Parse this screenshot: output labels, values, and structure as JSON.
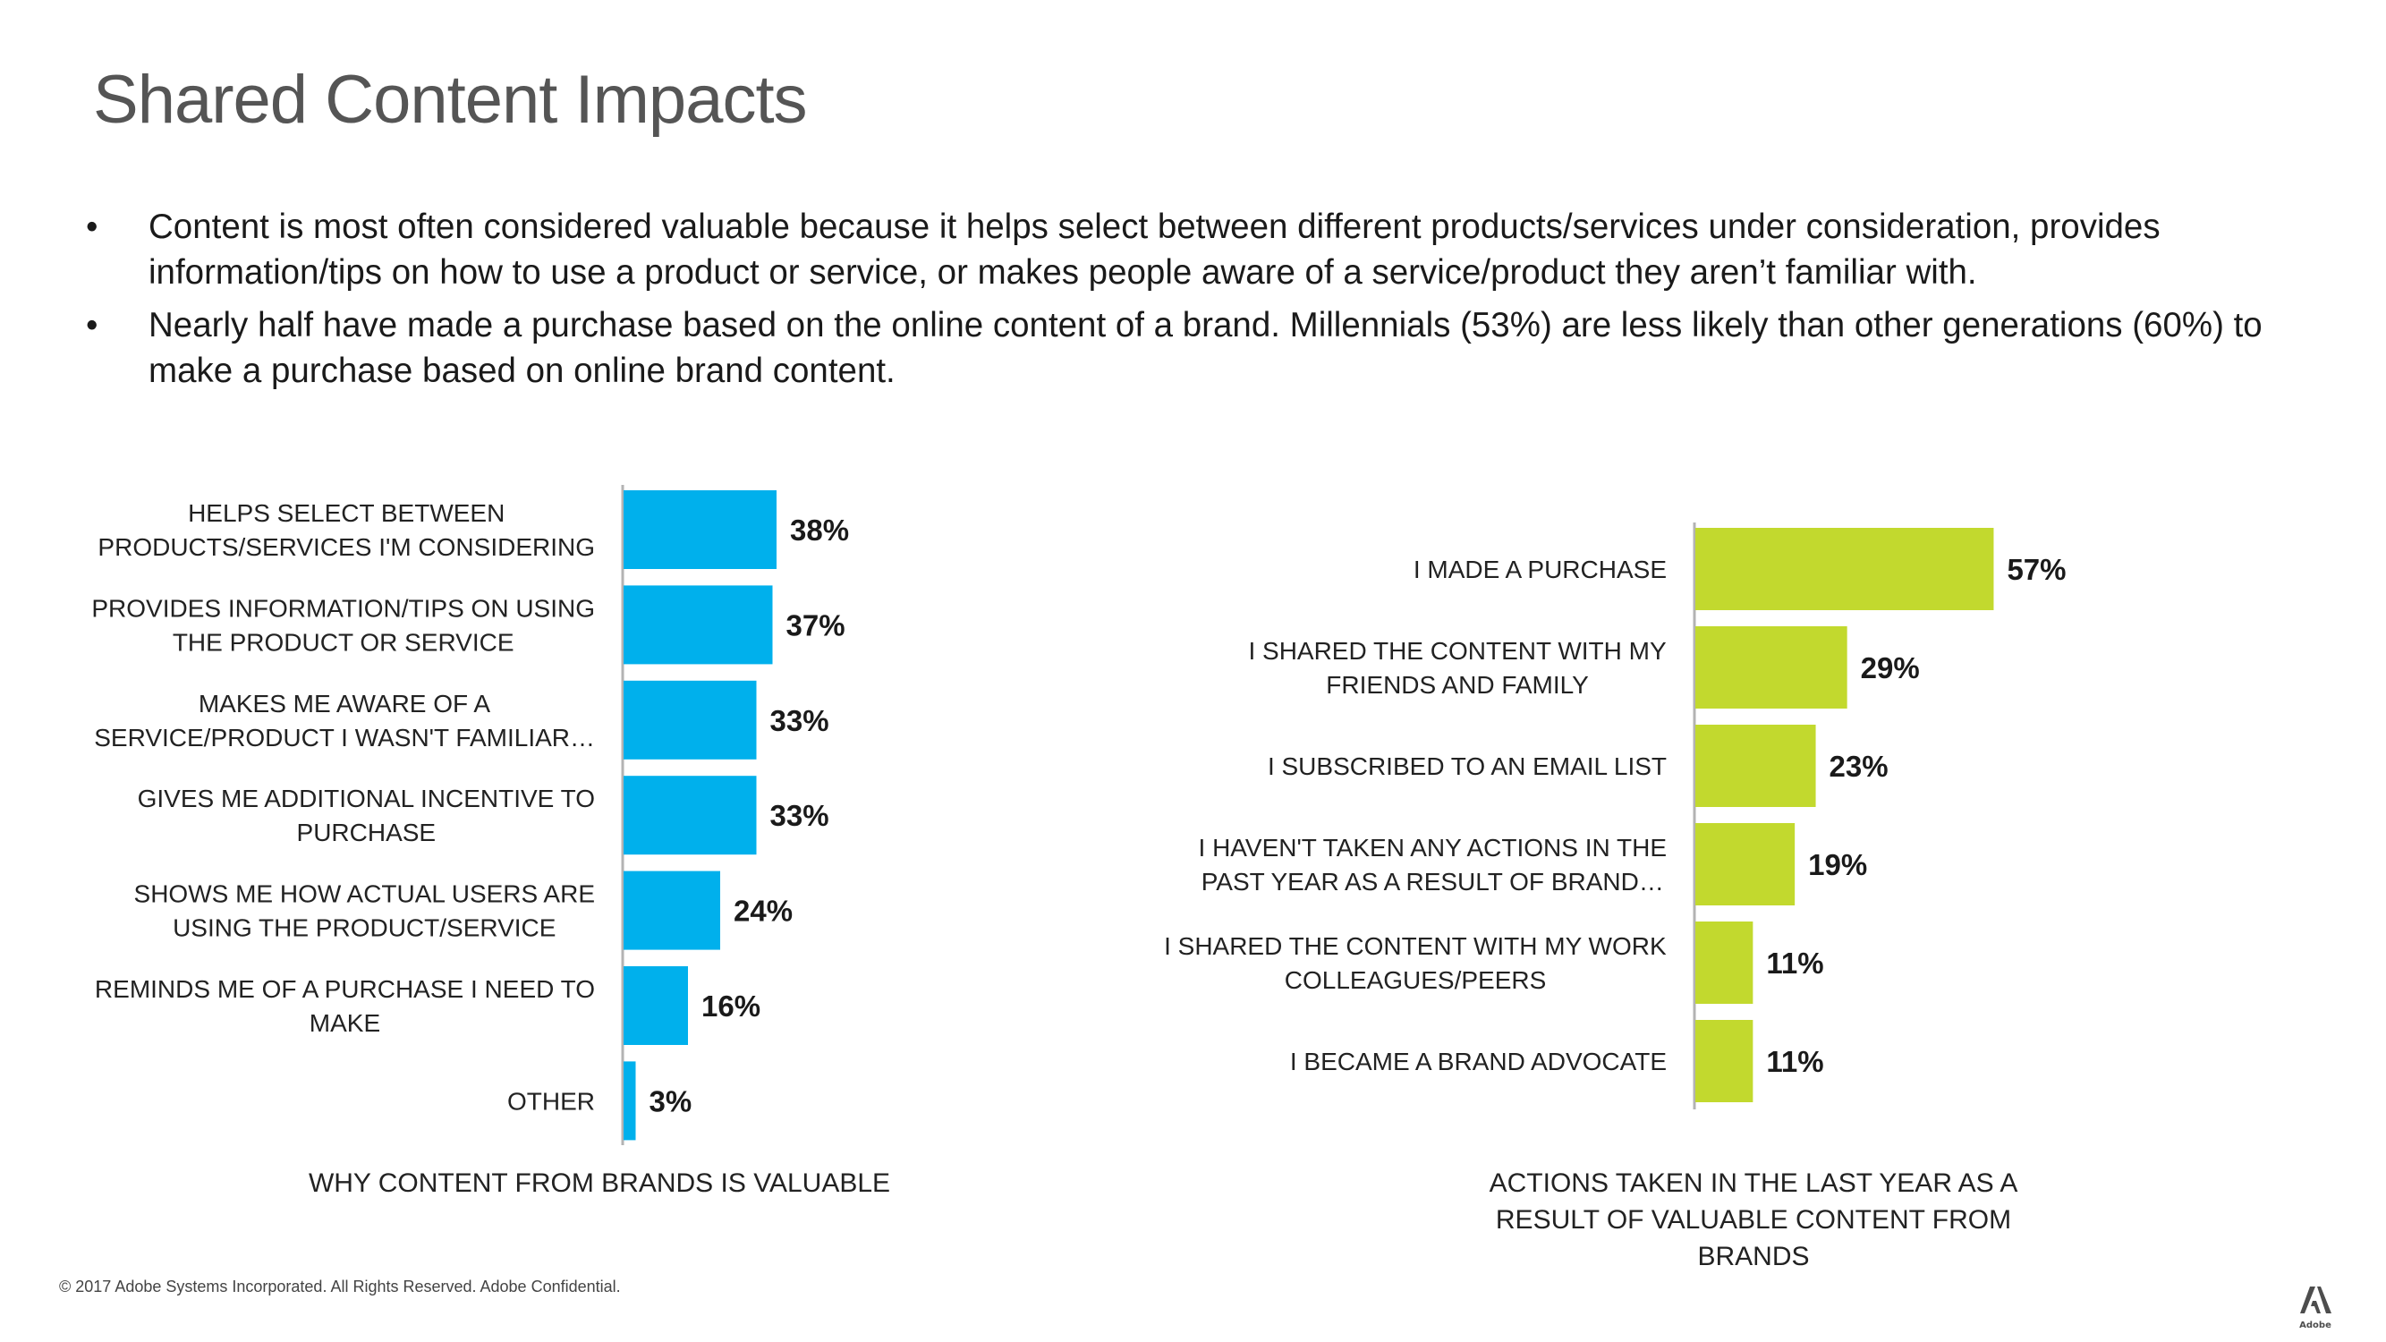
{
  "slide": {
    "title": "Shared Content Impacts",
    "bullet_symbol": "•",
    "bullets": [
      "Content is most often considered valuable because it helps select between different products/services under consideration, provides information/tips on how to use a product or service, or makes people aware of a service/product they aren’t familiar with.",
      "Nearly half have made a purchase based on the online content of a brand. Millennials (53%) are less likely than other generations (60%) to make a purchase based on online brand content."
    ],
    "footer": "© 2017 Adobe Systems Incorporated.  All Rights Reserved.  Adobe Confidential.",
    "logo_text": "Adobe",
    "logo_icon": "adobe-logo-icon"
  },
  "chart_data": [
    {
      "type": "bar",
      "orientation": "horizontal",
      "title": "WHY CONTENT FROM BRANDS IS VALUABLE",
      "color": "#00B0EC",
      "categories": [
        [
          "HELPS SELECT BETWEEN",
          "PRODUCTS/SERVICES I'M CONSIDERING"
        ],
        [
          "PROVIDES INFORMATION/TIPS ON USING",
          "THE PRODUCT OR SERVICE"
        ],
        [
          "MAKES ME AWARE OF A",
          "SERVICE/PRODUCT I WASN'T FAMILIAR…"
        ],
        [
          "GIVES ME ADDITIONAL INCENTIVE TO",
          "PURCHASE"
        ],
        [
          "SHOWS ME HOW ACTUAL USERS ARE",
          "USING THE PRODUCT/SERVICE"
        ],
        [
          "REMINDS ME OF A PURCHASE I NEED TO",
          "MAKE"
        ],
        [
          "OTHER"
        ]
      ],
      "values": [
        38,
        37,
        33,
        33,
        24,
        16,
        3
      ],
      "value_labels": [
        "38%",
        "37%",
        "33%",
        "33%",
        "24%",
        "16%",
        "3%"
      ],
      "unit": "%",
      "grid": false,
      "legend": "none"
    },
    {
      "type": "bar",
      "orientation": "horizontal",
      "title": "ACTIONS TAKEN IN THE LAST YEAR AS A RESULT OF VALUABLE CONTENT FROM BRANDS",
      "title_lines": [
        "ACTIONS TAKEN IN THE LAST YEAR AS A",
        "RESULT OF VALUABLE CONTENT FROM",
        "BRANDS"
      ],
      "color": "#C2D92E",
      "categories": [
        [
          "I MADE A PURCHASE"
        ],
        [
          "I SHARED THE CONTENT WITH MY",
          "FRIENDS AND FAMILY"
        ],
        [
          "I SUBSCRIBED TO AN EMAIL LIST"
        ],
        [
          "I HAVEN'T TAKEN ANY ACTIONS IN THE",
          "PAST YEAR AS A RESULT OF BRAND…"
        ],
        [
          "I SHARED THE CONTENT WITH MY WORK",
          "COLLEAGUES/PEERS"
        ],
        [
          "I BECAME A BRAND ADVOCATE"
        ]
      ],
      "values": [
        57,
        29,
        23,
        19,
        11,
        11
      ],
      "value_labels": [
        "57%",
        "29%",
        "23%",
        "19%",
        "11%",
        "11%"
      ],
      "unit": "%",
      "grid": false,
      "legend": "none"
    }
  ]
}
